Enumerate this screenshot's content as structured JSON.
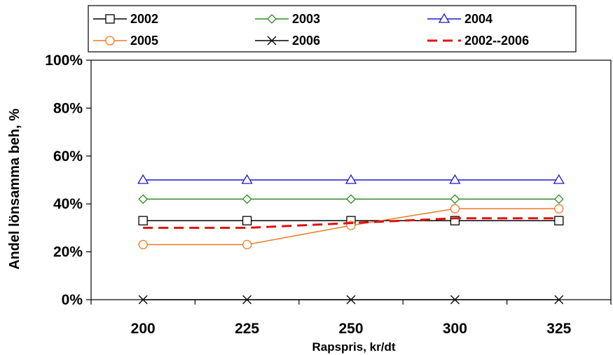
{
  "chart_data": {
    "type": "line",
    "title": "",
    "xlabel": "Rapspris, kr/dt",
    "ylabel": "Andel lönsamma beh, %",
    "categories": [
      "200",
      "225",
      "250",
      "300",
      "325"
    ],
    "ylim": [
      0,
      100
    ],
    "yticks": [
      "0%",
      "20%",
      "40%",
      "60%",
      "80%",
      "100%"
    ],
    "grid": false,
    "legend_position": "top",
    "series": [
      {
        "name": "2002",
        "values": [
          33,
          33,
          33,
          33,
          33
        ],
        "color": "#000000",
        "marker": "square",
        "dash": false
      },
      {
        "name": "2003",
        "values": [
          42,
          42,
          42,
          42,
          42
        ],
        "color": "#2e8b22",
        "marker": "diamond",
        "dash": false
      },
      {
        "name": "2004",
        "values": [
          50,
          50,
          50,
          50,
          50
        ],
        "color": "#1a1acc",
        "marker": "triangle",
        "dash": false
      },
      {
        "name": "2005",
        "values": [
          23,
          23,
          31,
          38,
          38
        ],
        "color": "#f07820",
        "marker": "circle",
        "dash": false
      },
      {
        "name": "2006",
        "values": [
          0,
          0,
          0,
          0,
          0
        ],
        "color": "#000000",
        "marker": "x",
        "dash": false
      },
      {
        "name": "2002--2006",
        "values": [
          30,
          30,
          32,
          34,
          34
        ],
        "color": "#e01010",
        "marker": "none",
        "dash": true
      }
    ]
  }
}
